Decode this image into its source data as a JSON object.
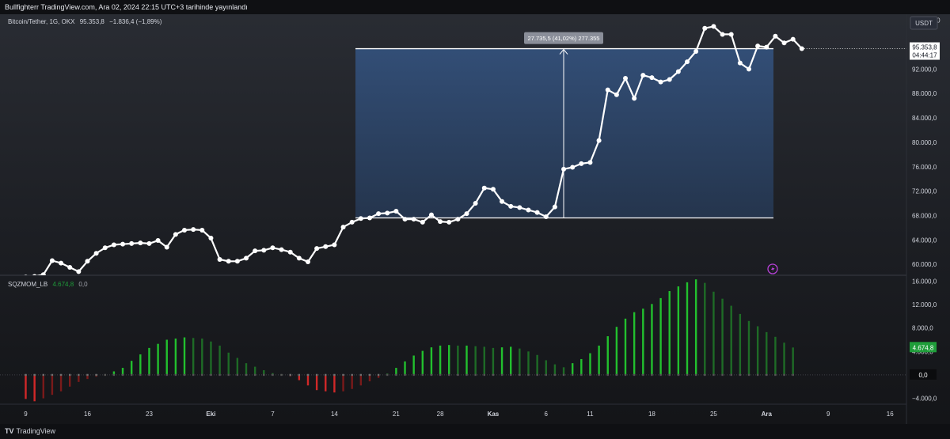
{
  "header": {
    "publish_line": "Bullfighterr TradingView.com, Ara 02, 2024 22:15 UTC+3 tarihinde yayınlandı"
  },
  "price_legend": {
    "symbol": "Bitcoin/Tether, 1G, OKX",
    "last": "95.353,8",
    "change": "−1.836,4 (−1,89%)"
  },
  "indicator_legend": {
    "name": "SQZMOM_LB",
    "value1": "4.674,8",
    "value2": "0,0"
  },
  "currency_badge": "USDT",
  "price_label": {
    "value": "95.353,8",
    "countdown": "04:44:17"
  },
  "measure_label": "27.735,5 (41,02%) 277.355",
  "indicator_labels": {
    "current": "4.674,8",
    "zero": "0,0"
  },
  "branding": {
    "logo": "TV",
    "name": "TradingView"
  },
  "colors": {
    "price_line": "#ffffff",
    "measure_fill": "#2f4a6c",
    "mom_bright_green": "#22c02e",
    "mom_dark_green": "#1e6b26",
    "mom_bright_red": "#d12828",
    "mom_dark_red": "#7a1a1a",
    "label_green": "#1f9d3a"
  },
  "chart_data": [
    {
      "type": "line",
      "title": "Bitcoin/Tether, 1G, OKX",
      "x_tick_labels": [
        "9",
        "16",
        "23",
        "Eki",
        "7",
        "14",
        "21",
        "28",
        "Kas",
        "6",
        "11",
        "18",
        "25",
        "Ara",
        "9",
        "16"
      ],
      "y_tick_labels": [
        "100.000,0",
        "96.000,0",
        "92.000,0",
        "88.000,0",
        "84.000,0",
        "80.000,0",
        "76.000,0",
        "72.000,0",
        "68.000,0",
        "64.000,0",
        "60.000,0"
      ],
      "ylim": [
        58200,
        101000
      ],
      "series": [
        {
          "values": [
            57900,
            58000,
            58300,
            60600,
            60200,
            59500,
            58800,
            60500,
            61800,
            62700,
            63200,
            63300,
            63400,
            63500,
            63400,
            63900,
            62800,
            64900,
            65600,
            65700,
            65600,
            64300,
            60800,
            60500,
            60500,
            61000,
            62200,
            62300,
            62700,
            62400,
            62000,
            61000,
            60400,
            62600,
            62900,
            63200,
            66100,
            66900,
            67500,
            67600,
            68300,
            68400,
            68700,
            67400,
            67400,
            66900,
            68100,
            67000,
            66900,
            67400,
            68300,
            70000,
            72500,
            72300,
            70300,
            69500,
            69300,
            68900,
            68500,
            67800,
            69400,
            75600,
            75900,
            76500,
            76700,
            80300,
            88600,
            87800,
            90500,
            87200,
            91000,
            90600,
            89900,
            90300,
            91600,
            93200,
            94900,
            98700,
            99000,
            97700,
            97700,
            93000,
            92000,
            95800,
            95600,
            97400,
            96300,
            96900,
            95353.8
          ]
        }
      ],
      "measure": {
        "low": 67600,
        "high": 95350,
        "change": 27735.5,
        "change_percent": 41.02,
        "ticks": 277355
      },
      "last_price": 95353.8
    },
    {
      "type": "bar",
      "title": "SQZMOM_LB",
      "y_tick_labels": [
        "16.000,0",
        "12.000,0",
        "8.000,0",
        "4.000,0",
        "0,0",
        "−4.000,0"
      ],
      "ylim": [
        -5000,
        17000
      ],
      "values": [
        -4100,
        -4500,
        -4000,
        -3400,
        -2800,
        -2000,
        -1200,
        -700,
        -300,
        -100,
        600,
        1200,
        2400,
        3500,
        4600,
        5300,
        6000,
        6200,
        6400,
        6300,
        6200,
        5700,
        5000,
        3800,
        2900,
        2000,
        1400,
        800,
        300,
        100,
        -200,
        -900,
        -1800,
        -2600,
        -2800,
        -3000,
        -2800,
        -2400,
        -1800,
        -1100,
        -500,
        200,
        1200,
        2300,
        3300,
        4100,
        4700,
        5000,
        5100,
        5000,
        5000,
        4900,
        4800,
        4600,
        4700,
        4800,
        4500,
        4000,
        3400,
        2500,
        1800,
        1300,
        2000,
        2700,
        3700,
        5000,
        6600,
        8200,
        9600,
        10700,
        11300,
        12100,
        13100,
        14300,
        15100,
        15800,
        16300,
        15700,
        14200,
        13000,
        11800,
        10400,
        9200,
        8300,
        7300,
        6500,
        5500,
        4674.8
      ],
      "xlabel": "",
      "ylabel": ""
    }
  ]
}
